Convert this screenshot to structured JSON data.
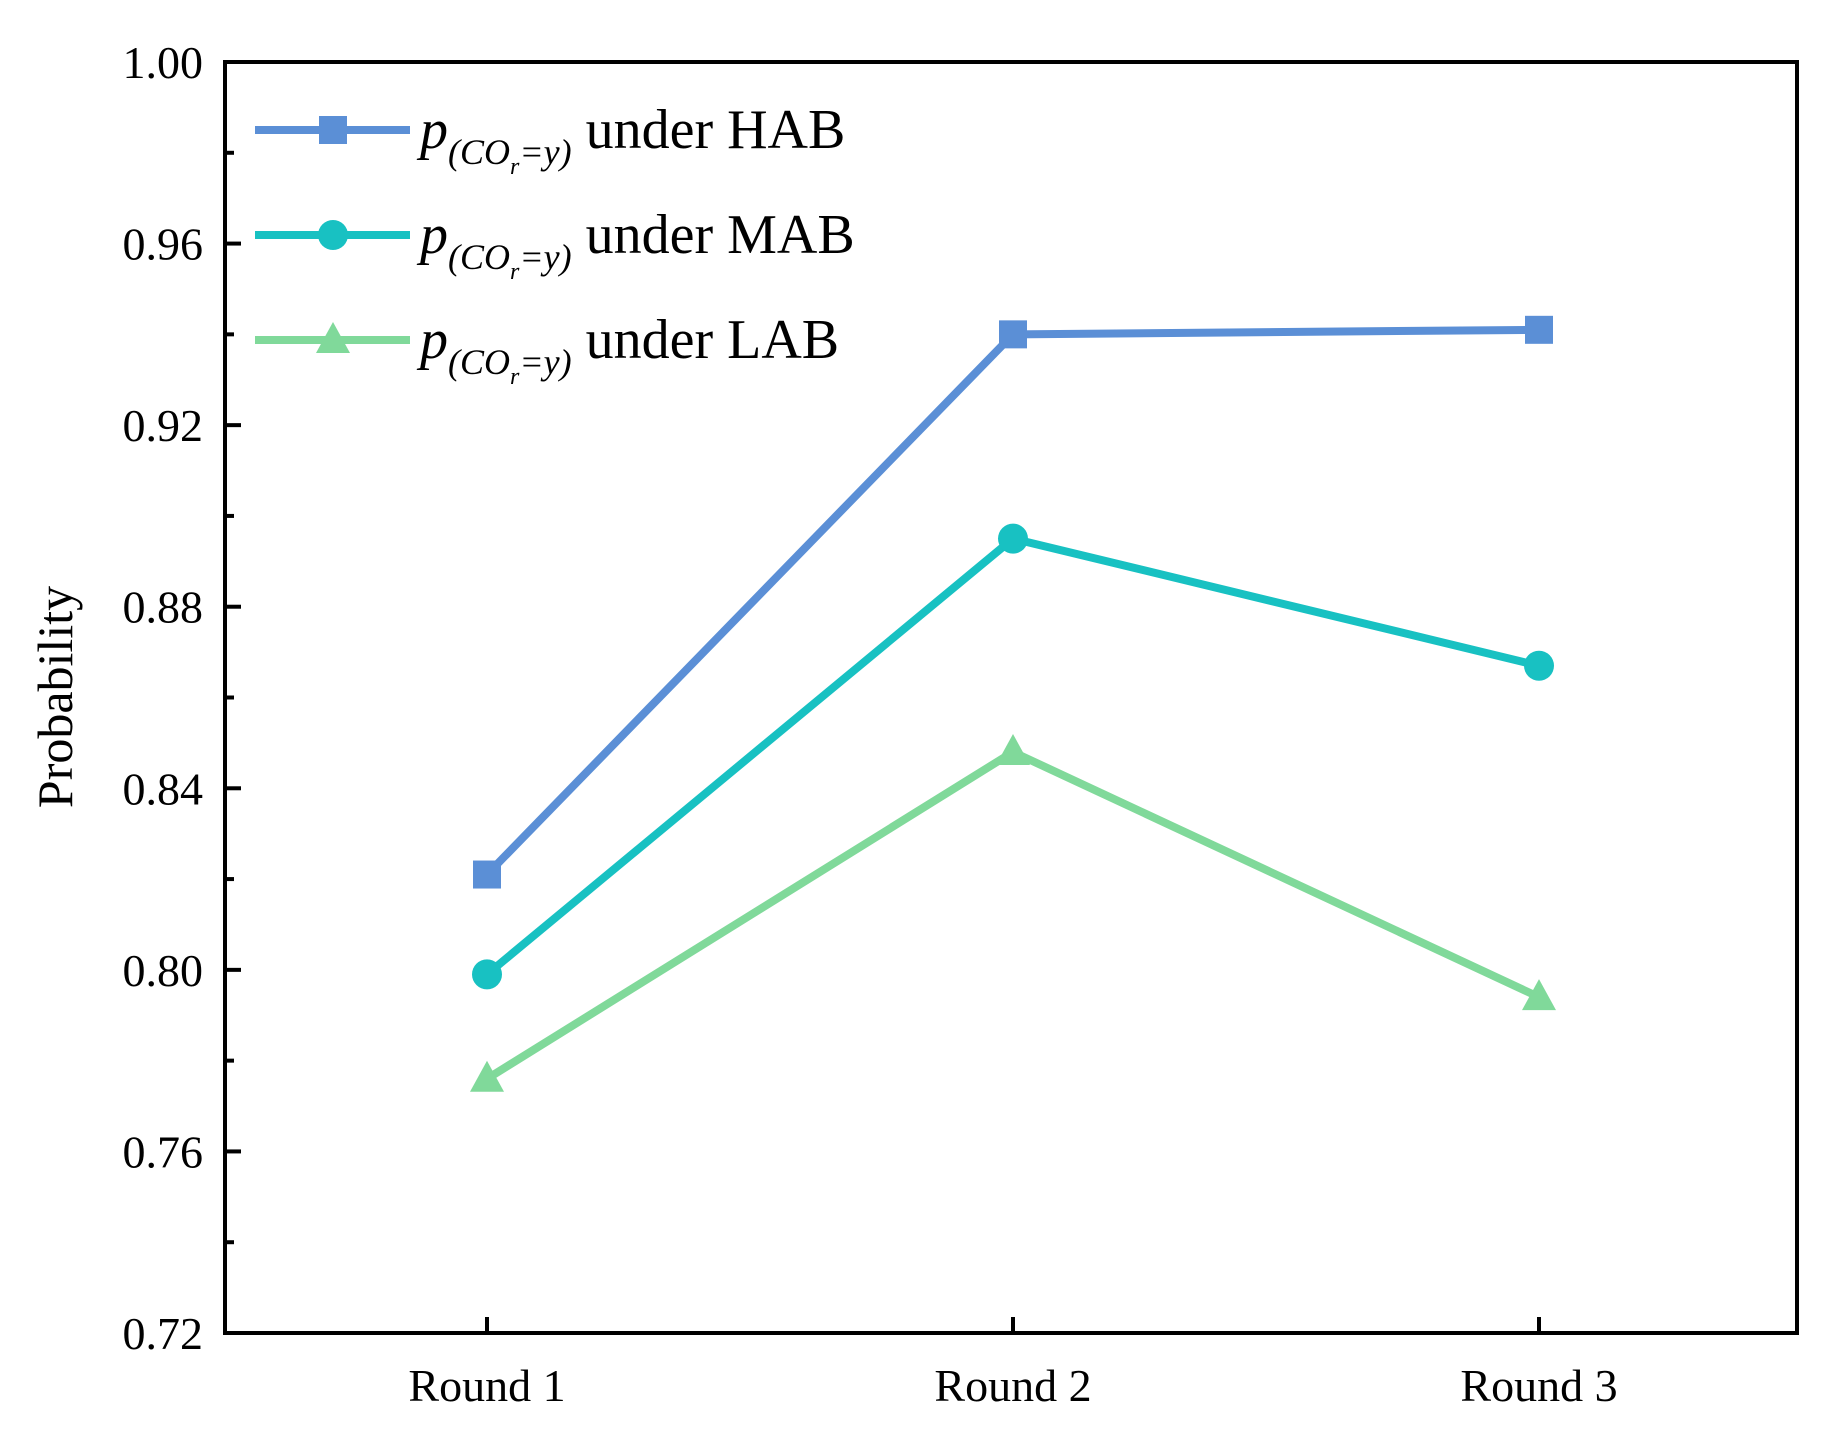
{
  "chart_data": {
    "type": "line",
    "title": "",
    "xlabel": "",
    "ylabel": "Probability",
    "categories": [
      "Round 1",
      "Round 2",
      "Round 3"
    ],
    "ylim": [
      0.72,
      1.0
    ],
    "yticks": [
      "0.72",
      "0.76",
      "0.80",
      "0.84",
      "0.88",
      "0.92",
      "0.96",
      "1.00"
    ],
    "grid": false,
    "legend_position": "top-left",
    "series": [
      {
        "name": "p(COr=y) under HAB",
        "legend": {
          "p": "p",
          "sub_open": "(CO",
          "sub_r": "r",
          "sub_close": "=y)",
          "suffix": " under HAB"
        },
        "values": [
          0.821,
          0.94,
          0.941
        ],
        "color": "#5b8fd6",
        "marker": "square"
      },
      {
        "name": "p(COr=y) under MAB",
        "legend": {
          "p": "p",
          "sub_open": "(CO",
          "sub_r": "r",
          "sub_close": "=y)",
          "suffix": " under MAB"
        },
        "values": [
          0.799,
          0.895,
          0.867
        ],
        "color": "#18c1c2",
        "marker": "circle"
      },
      {
        "name": "p(COr=y) under LAB",
        "legend": {
          "p": "p",
          "sub_open": "(CO",
          "sub_r": "r",
          "sub_close": "=y)",
          "suffix": " under LAB"
        },
        "values": [
          0.776,
          0.848,
          0.794
        ],
        "color": "#80d99a",
        "marker": "triangle"
      }
    ]
  }
}
